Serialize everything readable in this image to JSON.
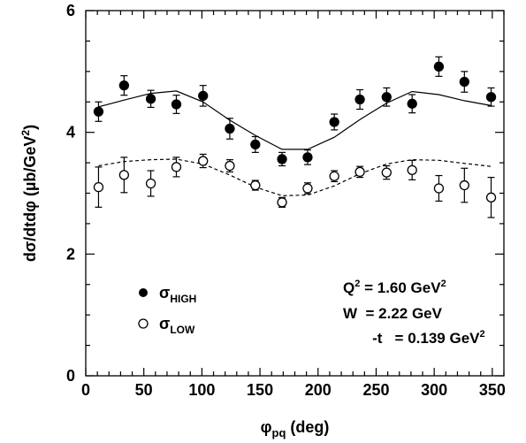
{
  "chart_data": {
    "type": "scatter",
    "xlabel": "φpq (deg)",
    "xlabel_parts": {
      "main": "φ",
      "sub": "pq",
      "tail": " (deg)"
    },
    "ylabel": "dσ/dtdφ (µb/GeV²)",
    "ylabel_parts": {
      "main": "dσ/dtdφ (µb/GeV",
      "sup": "2",
      "tail": ")"
    },
    "xlim": [
      0,
      360
    ],
    "ylim": [
      0,
      6
    ],
    "xticks": [
      0,
      50,
      100,
      150,
      200,
      250,
      300,
      350
    ],
    "xtick_labels": [
      "0",
      "50",
      "100",
      "150",
      "200",
      "250",
      "300",
      "350"
    ],
    "yticks": [
      0,
      2,
      4,
      6
    ],
    "ytick_labels": [
      "0",
      "2",
      "4",
      "6"
    ],
    "grid": false,
    "legend_position": "bottom-left",
    "series": [
      {
        "name": "σHIGH",
        "legend_main": "σ",
        "legend_sub": "HIGH",
        "marker": "filled-circle",
        "x": [
          11,
          33,
          56,
          78,
          101,
          124,
          146,
          169,
          191,
          214,
          236,
          259,
          281,
          304,
          326,
          349
        ],
        "y": [
          4.34,
          4.77,
          4.55,
          4.46,
          4.6,
          4.06,
          3.8,
          3.56,
          3.59,
          4.17,
          4.54,
          4.58,
          4.47,
          5.08,
          4.83,
          4.58
        ],
        "err": [
          0.16,
          0.16,
          0.14,
          0.15,
          0.17,
          0.17,
          0.13,
          0.11,
          0.12,
          0.13,
          0.16,
          0.15,
          0.15,
          0.16,
          0.17,
          0.15
        ]
      },
      {
        "name": "σLOW",
        "legend_main": "σ",
        "legend_sub": "LOW",
        "marker": "open-circle",
        "x": [
          11,
          33,
          56,
          78,
          101,
          124,
          146,
          169,
          191,
          214,
          236,
          259,
          281,
          304,
          326,
          349
        ],
        "y": [
          3.1,
          3.3,
          3.16,
          3.43,
          3.53,
          3.45,
          3.13,
          2.85,
          3.08,
          3.28,
          3.35,
          3.34,
          3.38,
          3.08,
          3.13,
          2.93
        ],
        "err": [
          0.33,
          0.29,
          0.21,
          0.16,
          0.11,
          0.1,
          0.08,
          0.08,
          0.09,
          0.09,
          0.09,
          0.11,
          0.16,
          0.21,
          0.28,
          0.33
        ]
      }
    ],
    "curves": [
      {
        "style": "solid",
        "x": [
          11,
          33,
          56,
          78,
          101,
          124,
          146,
          169,
          191,
          214,
          236,
          259,
          281,
          304,
          326,
          349
        ],
        "y": [
          4.42,
          4.53,
          4.64,
          4.68,
          4.5,
          4.2,
          3.95,
          3.72,
          3.72,
          3.92,
          4.21,
          4.48,
          4.67,
          4.62,
          4.52,
          4.44
        ]
      },
      {
        "style": "dashed",
        "x": [
          11,
          33,
          56,
          78,
          101,
          124,
          146,
          169,
          191,
          214,
          236,
          259,
          281,
          304,
          326,
          349
        ],
        "y": [
          3.45,
          3.52,
          3.55,
          3.56,
          3.48,
          3.3,
          3.1,
          2.96,
          2.97,
          3.12,
          3.32,
          3.48,
          3.55,
          3.54,
          3.49,
          3.44
        ]
      }
    ],
    "annotation": {
      "lines": [
        {
          "main": "Q",
          "sup": "2",
          "tail": " = 1.60 GeV",
          "sup2": "2"
        },
        {
          "main": "W  = 2.22 GeV",
          "sup": "",
          "tail": "",
          "sup2": ""
        },
        {
          "main": "-t   = 0.139 GeV",
          "sup": "",
          "tail": "",
          "sup2": "2"
        }
      ]
    }
  }
}
